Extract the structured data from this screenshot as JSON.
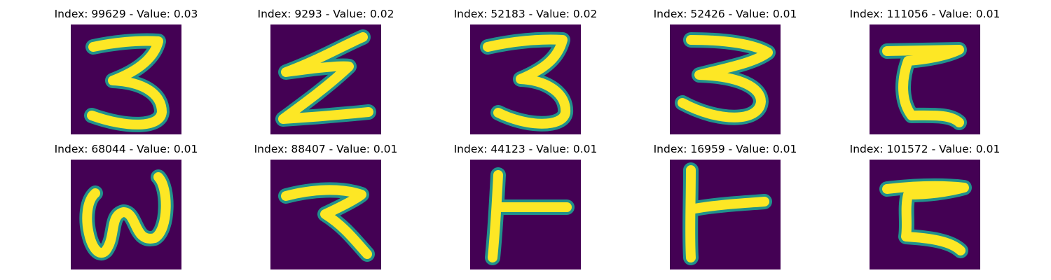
{
  "colors": {
    "background": "#440154",
    "stroke_edge": "#21918c",
    "stroke_core": "#fde725"
  },
  "panels": [
    {
      "title": "Index: 99629 - Value: 0.03",
      "glyph": "three-tall"
    },
    {
      "title": "Index: 9293 - Value: 0.02",
      "glyph": "zigzag"
    },
    {
      "title": "Index: 52183 - Value: 0.02",
      "glyph": "three-tall"
    },
    {
      "title": "Index: 52426 - Value: 0.01",
      "glyph": "three-wide"
    },
    {
      "title": "Index: 111056 - Value: 0.01",
      "glyph": "bracket"
    },
    {
      "title": "Index: 68044 - Value: 0.01",
      "glyph": "wave"
    },
    {
      "title": "Index: 88407 - Value: 0.01",
      "glyph": "hook"
    },
    {
      "title": "Index: 44123 - Value: 0.01",
      "glyph": "tee"
    },
    {
      "title": "Index: 16959 - Value: 0.01",
      "glyph": "tee-bold"
    },
    {
      "title": "Index: 101572 - Value: 0.01",
      "glyph": "bracket-slant"
    }
  ]
}
